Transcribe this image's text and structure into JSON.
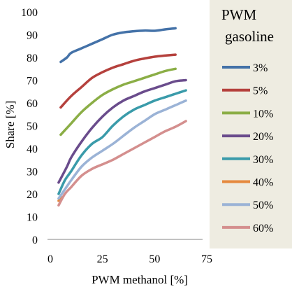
{
  "chart_data": {
    "type": "line",
    "xlabel": "PWM methanol [%]",
    "ylabel": "Share [%]",
    "xlim": [
      0,
      75
    ],
    "ylim": [
      0,
      100
    ],
    "x_ticks": [
      "0",
      "25",
      "50",
      "75"
    ],
    "y_ticks": [
      "0",
      "10",
      "20",
      "30",
      "40",
      "50",
      "60",
      "70",
      "80",
      "90",
      "100"
    ],
    "legend_title": [
      "PWM",
      "gasoline"
    ],
    "legend_placement": "right",
    "grid": false,
    "series": [
      {
        "name": "3%",
        "color": "#4472A8",
        "x": [
          5,
          8,
          10,
          15,
          20,
          25,
          30,
          35,
          40,
          45,
          50,
          55,
          60
        ],
        "y": [
          78,
          80,
          82,
          84,
          86,
          88,
          90,
          91,
          91.5,
          91.8,
          91.7,
          92.3,
          92.8
        ]
      },
      {
        "name": "5%",
        "color": "#B5413D",
        "x": [
          5,
          10,
          15,
          20,
          25,
          30,
          35,
          40,
          45,
          50,
          55,
          60
        ],
        "y": [
          58,
          63,
          67,
          71,
          73.5,
          75.5,
          77,
          78.5,
          79.5,
          80.3,
          80.8,
          81.2
        ]
      },
      {
        "name": "10%",
        "color": "#8BAE46",
        "x": [
          5,
          10,
          15,
          20,
          25,
          30,
          35,
          40,
          45,
          50,
          55,
          60
        ],
        "y": [
          46,
          51,
          56,
          60,
          63.5,
          66,
          68,
          69.5,
          71,
          72.5,
          74,
          75
        ]
      },
      {
        "name": "20%",
        "color": "#6A4C8C",
        "x": [
          4,
          8,
          10,
          15,
          20,
          25,
          30,
          35,
          40,
          45,
          50,
          55,
          60,
          65
        ],
        "y": [
          25,
          32,
          36,
          43,
          49,
          54,
          58,
          61,
          63,
          65,
          66.5,
          68,
          69.5,
          70
        ]
      },
      {
        "name": "30%",
        "color": "#3A9BAA",
        "x": [
          4,
          7,
          10,
          15,
          20,
          25,
          30,
          35,
          40,
          45,
          50,
          55,
          60,
          65
        ],
        "y": [
          20,
          26,
          30,
          37,
          42,
          45,
          50,
          54,
          57,
          59,
          61,
          62.5,
          64,
          65.5
        ]
      },
      {
        "name": "40%",
        "color": "#E5893D",
        "x": [
          4,
          5
        ],
        "y": [
          17,
          19
        ]
      },
      {
        "name": "50%",
        "color": "#9BB3D6",
        "x": [
          4,
          7,
          10,
          15,
          20,
          25,
          30,
          35,
          40,
          45,
          50,
          55,
          60,
          65
        ],
        "y": [
          18,
          22,
          26,
          32,
          36,
          39,
          42,
          45.5,
          49,
          52,
          55,
          57,
          59,
          61
        ]
      },
      {
        "name": "60%",
        "color": "#D48F8E",
        "x": [
          4,
          7,
          10,
          15,
          20,
          25,
          30,
          35,
          40,
          45,
          50,
          55,
          60,
          65
        ],
        "y": [
          15,
          20,
          23,
          28,
          31,
          33,
          35,
          37.5,
          40,
          42.5,
          45,
          47.5,
          49.5,
          52
        ]
      }
    ]
  }
}
